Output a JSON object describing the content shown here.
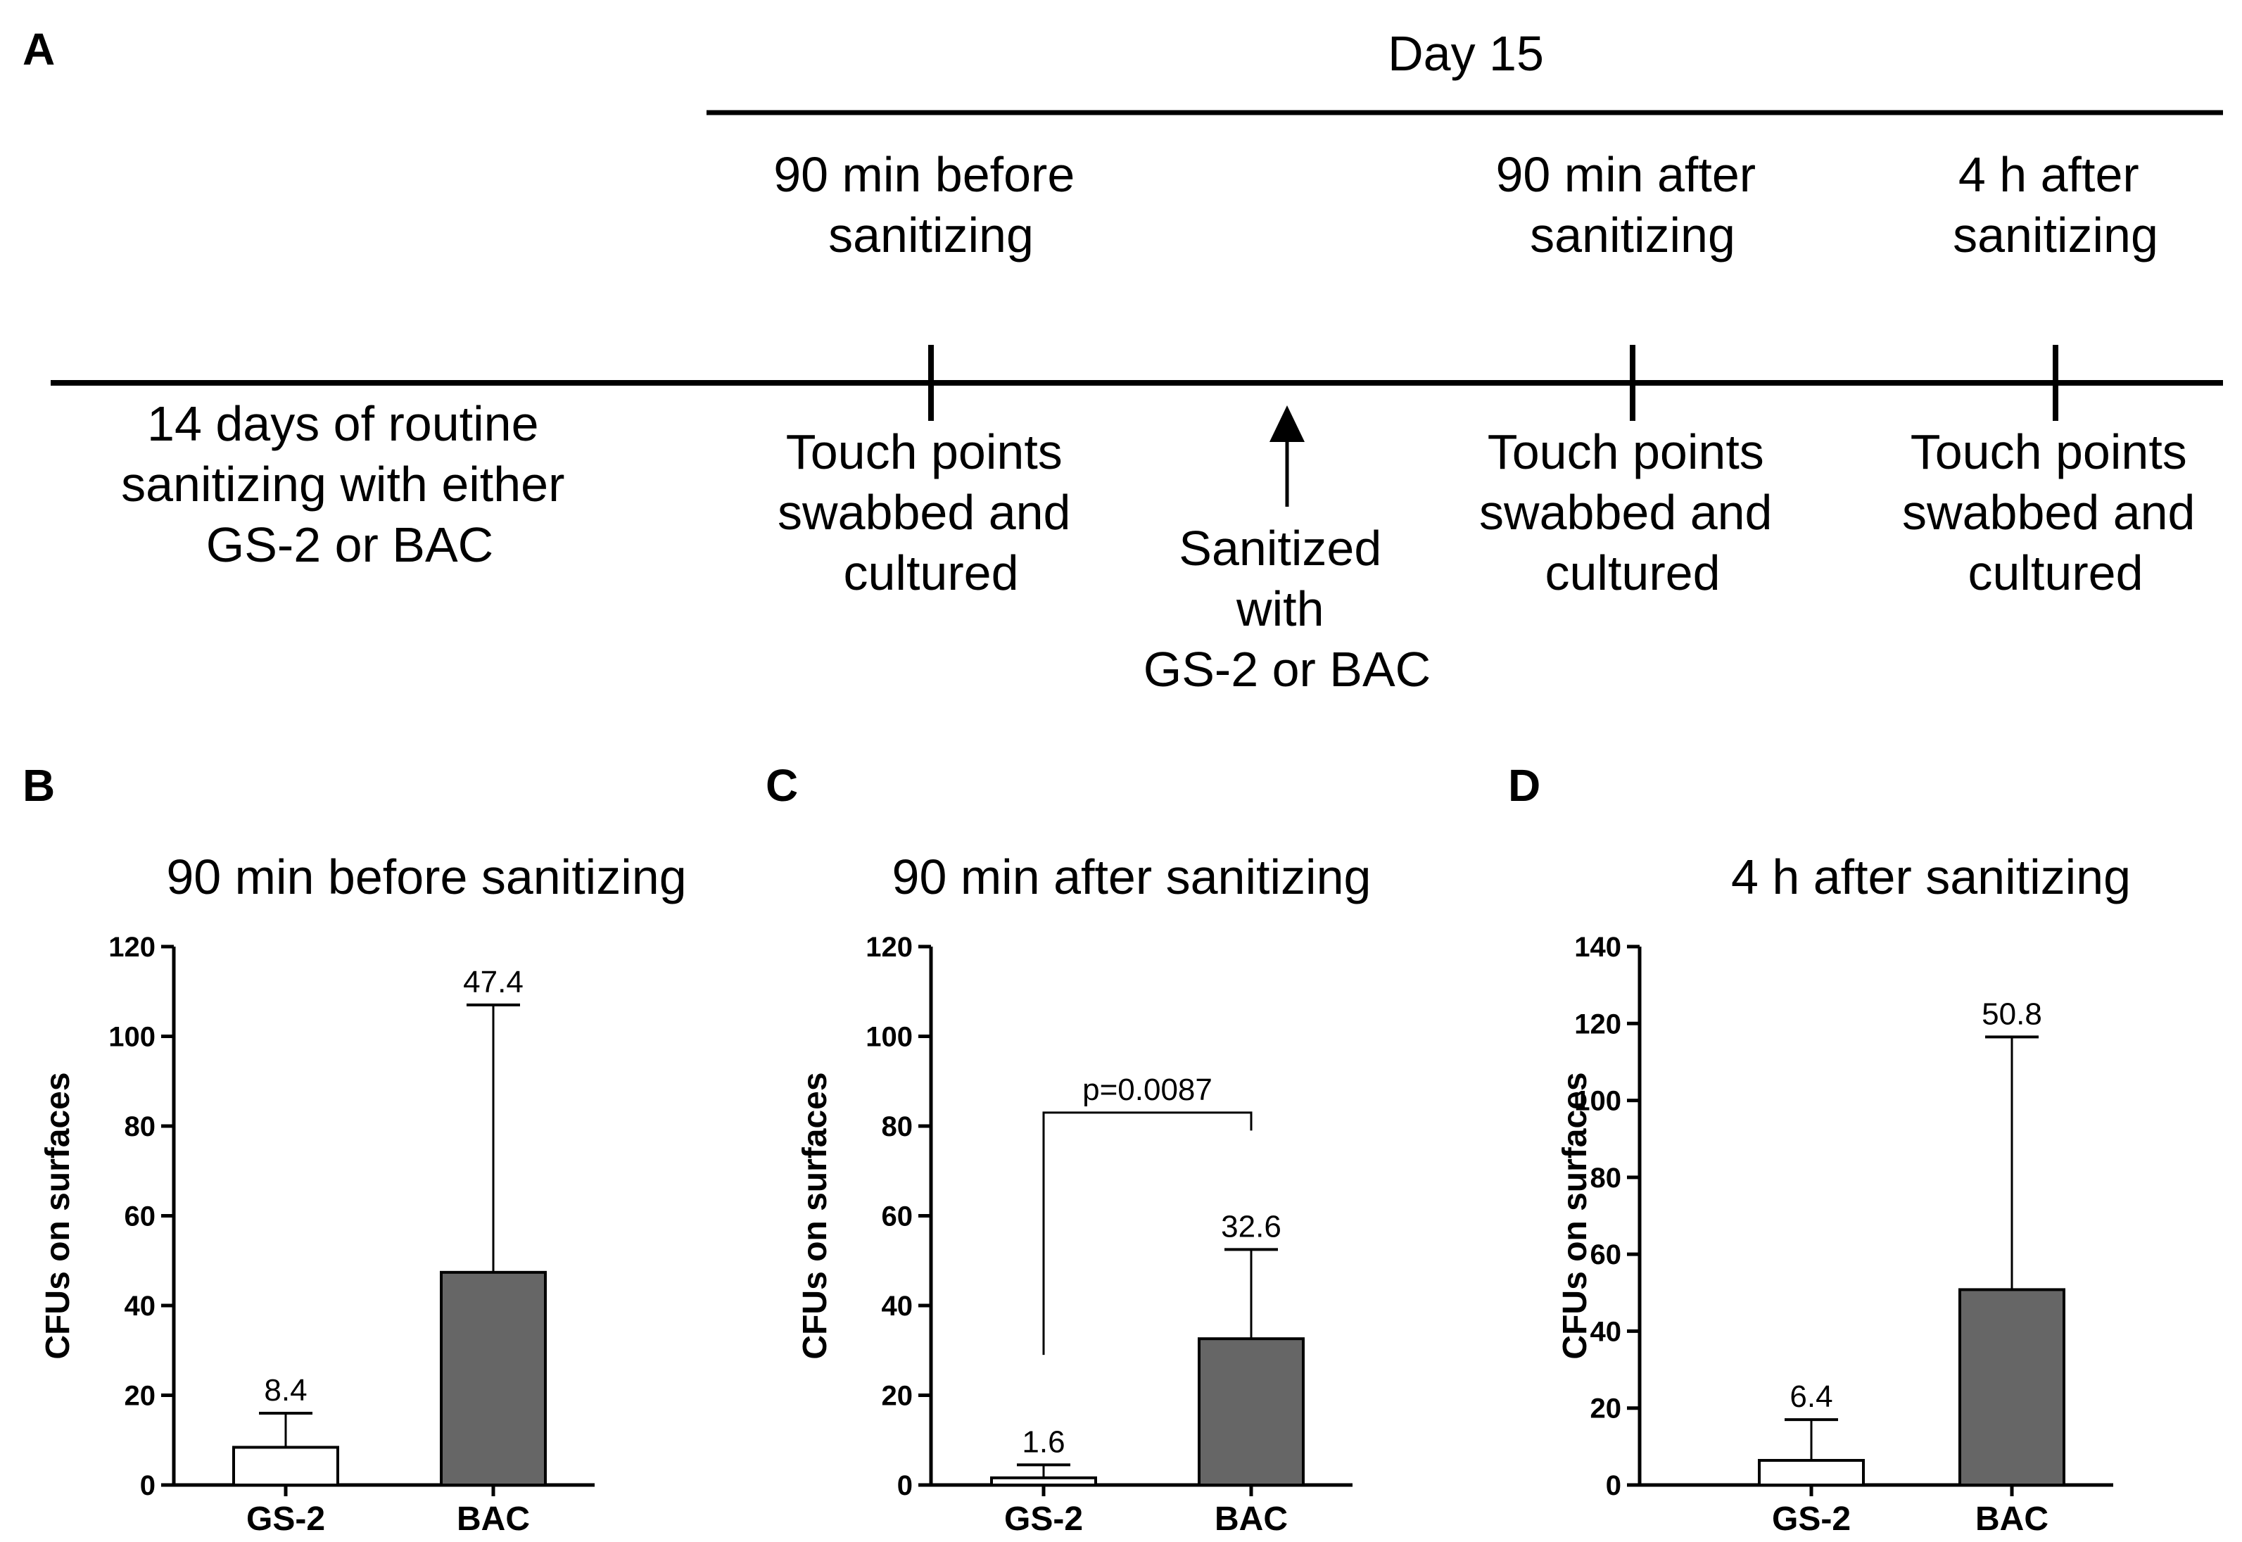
{
  "panel_labels": {
    "a": "A",
    "b": "B",
    "c": "C",
    "d": "D"
  },
  "timeline": {
    "day_label": "Day 15",
    "routine": [
      "14 days of routine",
      "sanitizing with either",
      "GS-2 or BAC"
    ],
    "before_top": [
      "90 min before",
      "sanitizing"
    ],
    "before_bottom": [
      "Touch points",
      "swabbed and",
      "cultured"
    ],
    "sanitized": [
      "Sanitized",
      "with",
      "GS-2 or BAC"
    ],
    "after90_top": [
      "90 min after",
      "sanitizing"
    ],
    "after90_bottom": [
      "Touch points",
      "swabbed and",
      "cultured"
    ],
    "after4h_top": [
      "4 h after",
      "sanitizing"
    ],
    "after4h_bottom": [
      "Touch points",
      "swabbed and",
      "cultured"
    ]
  },
  "colors": {
    "gs2_bar": "#ffffff",
    "bac_bar": "#666666",
    "line": "#000000"
  },
  "chart_data": [
    {
      "type": "bar",
      "panel": "B",
      "title": "90 min before sanitizing",
      "ylabel": "CFUs on surfaces",
      "xlabel": "",
      "ylim": [
        0,
        120
      ],
      "yticks": [
        0,
        20,
        40,
        60,
        80,
        100,
        120
      ],
      "categories": [
        "GS-2",
        "BAC"
      ],
      "values": [
        8.4,
        47.4
      ],
      "error_upper": [
        16,
        107
      ],
      "value_labels": [
        "8.4",
        "47.4"
      ],
      "bar_colors": [
        "#ffffff",
        "#666666"
      ],
      "significance": null
    },
    {
      "type": "bar",
      "panel": "C",
      "title": "90 min after sanitizing",
      "ylabel": "CFUs on surfaces",
      "xlabel": "",
      "ylim": [
        0,
        120
      ],
      "yticks": [
        0,
        20,
        40,
        60,
        80,
        100,
        120
      ],
      "categories": [
        "GS-2",
        "BAC"
      ],
      "values": [
        1.6,
        32.6
      ],
      "error_upper": [
        4.5,
        52.5
      ],
      "value_labels": [
        "1.6",
        "32.6"
      ],
      "bar_colors": [
        "#ffffff",
        "#666666"
      ],
      "significance": {
        "label": "p=0.0087",
        "level": 83,
        "left_end": 29,
        "right_end": 79
      }
    },
    {
      "type": "bar",
      "panel": "D",
      "title": "4 h after sanitizing",
      "ylabel": "CFUs on surfaces",
      "xlabel": "",
      "ylim": [
        0,
        140
      ],
      "yticks": [
        0,
        20,
        40,
        60,
        80,
        100,
        120,
        140
      ],
      "categories": [
        "GS-2",
        "BAC"
      ],
      "values": [
        6.4,
        50.8
      ],
      "error_upper": [
        17,
        116.5
      ],
      "value_labels": [
        "6.4",
        "50.8"
      ],
      "bar_colors": [
        "#ffffff",
        "#666666"
      ],
      "significance": null
    }
  ]
}
